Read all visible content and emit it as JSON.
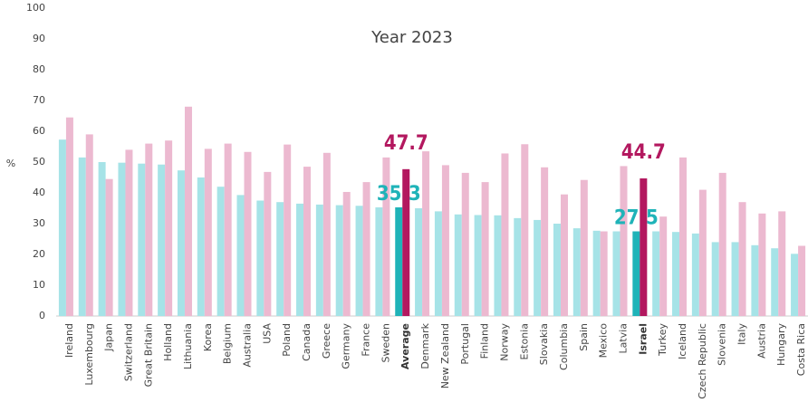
{
  "chart_data": {
    "type": "bar",
    "subtitle": "Year 2023",
    "y_label": "%",
    "categories": [
      "Ireland",
      "Luxembourg",
      "Japan",
      "Switzerland",
      "Great Britain",
      "Holland",
      "Lithuania",
      "Korea",
      "Belgium",
      "Australia",
      "USA",
      "Poland",
      "Canada",
      "Greece",
      "Germany",
      "France",
      "Sweden",
      "Average",
      "Denmark",
      "New Zealand",
      "Portugal",
      "Finland",
      "Norway",
      "Estonia",
      "Slovakia",
      "Columbia",
      "Spain",
      "Mexico",
      "Latvia",
      "Israel",
      "Turkey",
      "Iceland",
      "Czech Republic",
      "Slovenia",
      "Italy",
      "Austria",
      "Hungary",
      "Costa Rica"
    ],
    "series": [
      {
        "color": "#a6e3e7",
        "highlight_color": "#1fb3b8",
        "values": [
          57.3,
          51.5,
          50,
          49.8,
          49.5,
          49.2,
          47.3,
          45,
          42,
          39.3,
          37.5,
          37,
          36.5,
          36.2,
          36,
          35.8,
          35.3,
          35.3,
          35,
          34,
          33,
          32.8,
          32.7,
          31.8,
          31.2,
          30,
          28.5,
          27.7,
          27.5,
          27.5,
          27.5,
          27.3,
          26.8,
          24,
          24,
          23,
          22,
          20.2
        ]
      },
      {
        "color": "#ecb9d0",
        "highlight_color": "#b3185f",
        "values": [
          64.5,
          59,
          44.5,
          54,
          56,
          57,
          68,
          54.3,
          56,
          53.3,
          46.8,
          55.7,
          48.5,
          53,
          40.3,
          43.5,
          51.5,
          47.7,
          53.5,
          49,
          46.5,
          43.5,
          52.8,
          55.8,
          48.3,
          39.5,
          44.2,
          27.5,
          48.7,
          44.7,
          32.3,
          51.5,
          41,
          46.5,
          37,
          33.3,
          34,
          22.8
        ]
      }
    ],
    "highlight": [
      17,
      29
    ],
    "ylim": [
      0,
      100
    ],
    "yticks": [
      0,
      10,
      20,
      30,
      40,
      50,
      60,
      70,
      80,
      90,
      100
    ],
    "grid": false
  }
}
